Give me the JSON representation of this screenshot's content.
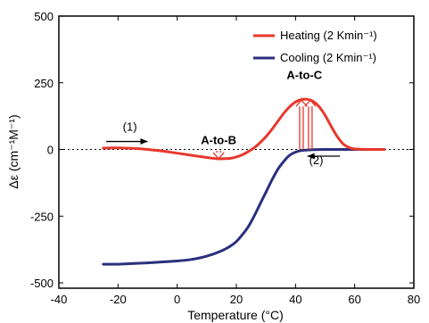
{
  "chart_data": {
    "type": "line",
    "xlabel": "Temperature (°C)",
    "ylabel": "Δε (cm⁻¹M⁻¹)",
    "xlim": [
      -40,
      80
    ],
    "ylim": [
      -520,
      500
    ],
    "xticks": [
      -40,
      -20,
      0,
      20,
      40,
      60,
      80
    ],
    "yticks": [
      -500,
      -250,
      0,
      250,
      500
    ],
    "reference_line": {
      "y": 0,
      "style": "dotted"
    },
    "legend_position": "top-right",
    "series": [
      {
        "name": "Heating (2 Kmin⁻¹)",
        "color": "#e8382d",
        "x": [
          -25,
          -20,
          -15,
          -10,
          -5,
          0,
          5,
          10,
          14,
          18,
          20,
          22,
          24,
          26,
          28,
          30,
          32,
          34,
          36,
          38,
          40,
          42,
          44,
          46,
          48,
          50,
          52,
          54,
          56,
          58,
          60,
          65,
          70
        ],
        "y": [
          5,
          6,
          4,
          0,
          -6,
          -14,
          -22,
          -30,
          -35,
          -33,
          -28,
          -20,
          -8,
          6,
          25,
          48,
          75,
          105,
          135,
          160,
          178,
          187,
          188,
          180,
          160,
          128,
          88,
          50,
          22,
          8,
          2,
          0,
          0
        ]
      },
      {
        "name": "Cooling (2 Kmin⁻¹)",
        "color": "#2b2f7d",
        "x": [
          -25,
          -20,
          -10,
          0,
          5,
          10,
          15,
          18,
          20,
          22,
          24,
          26,
          28,
          30,
          32,
          34,
          36,
          38,
          40,
          42,
          44,
          46,
          50,
          55,
          60,
          70
        ],
        "y": [
          -430,
          -430,
          -425,
          -418,
          -412,
          -400,
          -380,
          -362,
          -345,
          -320,
          -290,
          -250,
          -205,
          -160,
          -115,
          -75,
          -45,
          -22,
          -10,
          -4,
          -2,
          -1,
          0,
          0,
          0,
          0
        ]
      }
    ],
    "annotations": [
      {
        "text": "(1)",
        "x": -16,
        "y": 70,
        "arrow_from_x": -24,
        "arrow_to_x": -10,
        "arrow_y": 30,
        "arrow_direction": "right"
      },
      {
        "text": "(2)",
        "x": 47,
        "y": -55,
        "arrow_from_x": 55,
        "arrow_to_x": 44,
        "arrow_y": -25,
        "arrow_direction": "left"
      },
      {
        "label_left": "A-to-",
        "label_right": "B",
        "x": 14,
        "y": 20,
        "arrow_x": 14,
        "arrow_from_y": -5,
        "arrow_to_y": -35,
        "arrow_direction": "down"
      },
      {
        "label_left": "A-to-",
        "label_right": "C",
        "x": 43,
        "y": 265,
        "arrow_x": [
          42,
          45
        ],
        "arrow_from_y": 0,
        "arrow_to_y": 185,
        "arrow_direction": "up"
      }
    ]
  }
}
